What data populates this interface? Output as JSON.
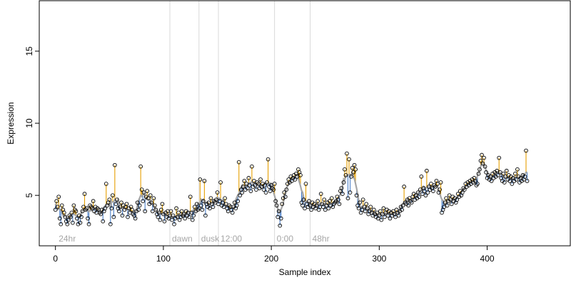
{
  "chart_data": {
    "type": "scatter",
    "title": "",
    "xlabel": "Sample index",
    "ylabel": "Expression",
    "xlim": [
      -15,
      477
    ],
    "ylim": [
      1.5,
      18.5
    ],
    "x_ticks": [
      0,
      100,
      200,
      300,
      400
    ],
    "y_ticks": [
      5,
      10,
      15
    ],
    "grid": false,
    "phase_markers": [
      {
        "x": 1,
        "label": "24hr",
        "line": false
      },
      {
        "x": 106,
        "label": "dawn",
        "line": true
      },
      {
        "x": 133,
        "label": "dusk",
        "line": true
      },
      {
        "x": 151,
        "label": "12:00",
        "line": true
      },
      {
        "x": 203,
        "label": "0:00",
        "line": true
      },
      {
        "x": 236,
        "label": "48hr",
        "line": true
      }
    ],
    "colors": {
      "above": "#e69f00",
      "below": "#4a7fc8",
      "smooth": "#a6a6a6",
      "phase_line": "#d9d9d9",
      "phase_text": "#a6a6a6"
    },
    "series": [
      {
        "type": "points_with_residuals",
        "smooth_window": 7,
        "values": [
          4.0,
          4.6,
          4.2,
          4.9,
          3.4,
          3.0,
          4.3,
          4.0,
          3.8,
          3.5,
          3.2,
          3.0,
          3.3,
          3.6,
          3.5,
          3.8,
          3.1,
          4.3,
          4.0,
          3.9,
          3.4,
          3.0,
          3.6,
          3.1,
          3.5,
          3.9,
          4.2,
          5.1,
          4.0,
          4.1,
          3.4,
          3.0,
          4.3,
          4.2,
          4.1,
          4.6,
          3.9,
          4.2,
          3.8,
          4.1,
          4.0,
          3.8,
          3.7,
          4.0,
          3.2,
          3.9,
          4.1,
          5.8,
          4.3,
          4.5,
          4.7,
          3.0,
          4.1,
          5.0,
          3.5,
          7.1,
          4.4,
          4.7,
          4.1,
          3.9,
          4.2,
          4.5,
          3.6,
          4.3,
          4.0,
          4.2,
          4.4,
          3.5,
          4.1,
          3.8,
          4.2,
          4.0,
          3.7,
          3.6,
          3.4,
          3.9,
          4.5,
          4.0,
          4.3,
          7.0,
          5.4,
          4.6,
          5.2,
          3.9,
          4.9,
          5.3,
          4.8,
          4.4,
          5.0,
          4.5,
          3.9,
          4.8,
          4.3,
          4.0,
          3.7,
          3.5,
          3.8,
          3.3,
          4.0,
          4.4,
          3.7,
          3.2,
          3.8,
          3.5,
          3.9,
          3.4,
          3.6,
          3.9,
          3.3,
          3.6,
          3.0,
          3.4,
          4.1,
          3.5,
          3.8,
          3.3,
          3.5,
          3.9,
          3.6,
          3.7,
          3.4,
          3.9,
          3.6,
          3.8,
          3.5,
          4.9,
          3.8,
          3.3,
          3.6,
          4.2,
          3.9,
          4.4,
          4.0,
          4.1,
          6.1,
          4.3,
          4.0,
          4.6,
          6.0,
          3.6,
          4.4,
          4.2,
          4.5,
          4.1,
          4.8,
          4.4,
          4.2,
          4.6,
          4.5,
          4.7,
          5.2,
          4.4,
          4.6,
          5.9,
          4.3,
          4.5,
          4.2,
          4.8,
          4.4,
          4.1,
          3.9,
          4.3,
          4.2,
          4.0,
          3.8,
          4.2,
          4.5,
          4.1,
          4.3,
          4.6,
          7.3,
          5.0,
          5.4,
          5.2,
          5.6,
          6.0,
          5.4,
          5.8,
          5.5,
          6.2,
          5.7,
          5.3,
          7.0,
          5.6,
          6.0,
          5.7,
          5.4,
          5.9,
          5.8,
          5.5,
          6.1,
          5.6,
          5.8,
          5.4,
          5.7,
          5.2,
          5.9,
          7.5,
          5.6,
          5.3,
          5.7,
          5.5,
          5.4,
          5.8,
          4.6,
          4.3,
          3.5,
          3.9,
          2.9,
          3.4,
          4.4,
          4.8,
          5.2,
          4.9,
          5.4,
          5.8,
          6.1,
          5.9,
          6.3,
          6.0,
          6.2,
          6.4,
          6.1,
          6.5,
          6.3,
          6.8,
          6.6,
          6.4,
          4.5,
          4.3,
          4.7,
          4.1,
          5.8,
          4.4,
          4.2,
          4.6,
          4.3,
          4.0,
          4.5,
          4.2,
          4.4,
          4.1,
          4.3,
          4.6,
          4.0,
          4.2,
          5.1,
          4.4,
          4.2,
          4.7,
          4.0,
          4.3,
          4.5,
          4.1,
          4.6,
          4.3,
          4.8,
          4.2,
          4.4,
          4.5,
          4.6,
          4.9,
          4.7,
          4.4,
          5.3,
          5.5,
          5.1,
          5.9,
          6.8,
          6.4,
          7.9,
          4.8,
          7.5,
          5.2,
          6.3,
          6.9,
          6.6,
          7.1,
          6.8,
          5.0,
          4.3,
          4.1,
          4.5,
          3.8,
          4.0,
          4.7,
          4.2,
          3.9,
          4.4,
          4.1,
          3.7,
          3.9,
          4.2,
          3.8,
          3.6,
          4.0,
          3.7,
          3.5,
          3.8,
          3.4,
          3.6,
          3.9,
          3.3,
          3.7,
          4.1,
          3.5,
          3.8,
          4.0,
          3.6,
          3.9,
          3.4,
          3.8,
          3.6,
          3.9,
          3.7,
          3.5,
          4.0,
          3.8,
          3.6,
          3.9,
          4.2,
          4.0,
          4.3,
          5.6,
          4.5,
          4.4,
          4.7,
          4.3,
          4.8,
          4.6,
          4.5,
          4.9,
          5.1,
          4.7,
          5.0,
          4.8,
          5.2,
          4.9,
          5.4,
          6.3,
          5.1,
          5.5,
          5.3,
          5.0,
          6.7,
          5.2,
          5.6,
          5.4,
          5.8,
          5.5,
          5.3,
          5.7,
          5.6,
          6.0,
          5.8,
          5.2,
          5.4,
          5.9,
          3.8,
          4.0,
          4.2,
          4.5,
          4.8,
          4.3,
          4.6,
          5.0,
          4.7,
          4.4,
          4.9,
          4.6,
          4.8,
          4.5,
          4.7,
          5.1,
          4.9,
          5.3,
          5.0,
          5.2,
          5.5,
          5.4,
          5.8,
          5.6,
          5.9,
          5.7,
          6.0,
          5.8,
          6.1,
          5.9,
          6.2,
          6.0,
          5.7,
          5.8,
          6.5,
          6.8,
          7.4,
          7.8,
          7.2,
          7.6,
          7.0,
          6.6,
          6.2,
          6.4,
          6.1,
          6.3,
          6.0,
          6.5,
          6.2,
          6.6,
          6.3,
          6.7,
          6.4,
          7.6,
          6.6,
          6.2,
          6.0,
          6.5,
          5.9,
          6.3,
          6.7,
          6.1,
          6.4,
          6.0,
          6.3,
          5.8,
          6.2,
          6.0,
          6.5,
          6.1,
          6.8,
          6.3,
          5.9,
          6.2,
          6.0,
          6.4,
          6.1,
          6.3,
          8.1,
          6.0
        ]
      }
    ]
  }
}
